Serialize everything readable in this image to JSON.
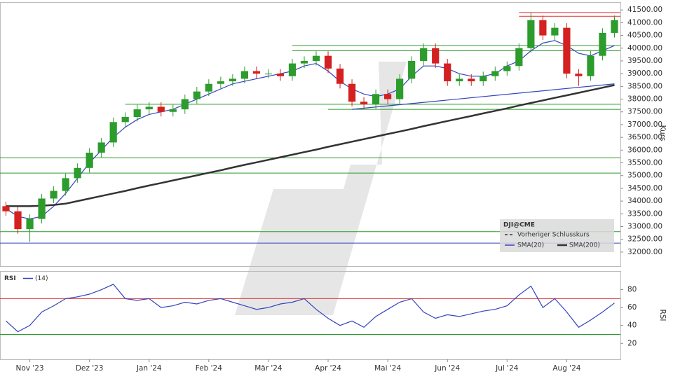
{
  "chart_data": [
    {
      "type": "candlestick",
      "categories": [
        null,
        null,
        "Nov '23",
        null,
        null,
        null,
        null,
        "Dez '23",
        null,
        null,
        null,
        null,
        "Jan '24",
        null,
        null,
        null,
        null,
        "Feb '24",
        null,
        null,
        null,
        null,
        "Mär '24",
        null,
        null,
        null,
        null,
        "Apr '24",
        null,
        null,
        null,
        null,
        "Mai '24",
        null,
        null,
        null,
        null,
        "Jun '24",
        null,
        null,
        null,
        null,
        "Jul '24",
        null,
        null,
        null,
        null,
        "Aug '24",
        null,
        null,
        null,
        null
      ],
      "open": [
        33800,
        33600,
        32900,
        33300,
        34100,
        34400,
        34900,
        35300,
        35900,
        36300,
        37100,
        37300,
        37600,
        37700,
        37500,
        37600,
        38000,
        38300,
        38600,
        38700,
        38800,
        39100,
        39000,
        39000,
        38900,
        39400,
        39500,
        39700,
        39200,
        38600,
        37900,
        37800,
        38200,
        38000,
        38800,
        39500,
        40000,
        39400,
        38700,
        38800,
        38700,
        38900,
        39100,
        39300,
        40000,
        41100,
        40500,
        40800,
        39000,
        38900,
        39700,
        40600
      ],
      "high": [
        33980,
        33780,
        33480,
        34280,
        34580,
        35080,
        35480,
        36080,
        36480,
        37280,
        37480,
        37780,
        37880,
        37880,
        37780,
        38180,
        38480,
        38780,
        38880,
        38980,
        39280,
        39280,
        39180,
        39180,
        39580,
        39680,
        39880,
        39880,
        39380,
        38780,
        38080,
        38380,
        38380,
        38980,
        39680,
        40180,
        40180,
        39580,
        38980,
        38980,
        39080,
        39280,
        39480,
        40180,
        41380,
        41280,
        40980,
        40980,
        39180,
        39880,
        40780,
        41280
      ],
      "low": [
        33420,
        32720,
        32400,
        33120,
        33920,
        34220,
        34720,
        35120,
        35720,
        36120,
        36920,
        37120,
        37420,
        37320,
        37320,
        37420,
        37820,
        38120,
        38420,
        38520,
        38620,
        38820,
        38820,
        38720,
        38720,
        39220,
        39320,
        39020,
        38420,
        37720,
        37620,
        37620,
        37820,
        37820,
        38620,
        39320,
        39220,
        38520,
        38520,
        38520,
        38520,
        38720,
        38920,
        39120,
        39820,
        40320,
        40320,
        38820,
        38520,
        38720,
        39520,
        40420
      ],
      "close": [
        33600,
        32900,
        33300,
        34100,
        34400,
        34900,
        35300,
        35900,
        36300,
        37100,
        37300,
        37600,
        37700,
        37500,
        37600,
        38000,
        38300,
        38600,
        38700,
        38800,
        39100,
        39000,
        39000,
        38900,
        39400,
        39500,
        39700,
        39200,
        38600,
        37900,
        37800,
        38200,
        38000,
        38800,
        39500,
        40000,
        39400,
        38700,
        38800,
        38700,
        38900,
        39100,
        39300,
        40000,
        41100,
        40500,
        40800,
        39000,
        38900,
        39700,
        40600,
        41100
      ],
      "up_color": "#2c9c2c",
      "down_color": "#d42020",
      "series": [
        {
          "name": "SMA(20)",
          "color": "#3344bb",
          "values": [
            33700,
            33400,
            33300,
            33400,
            33800,
            34300,
            34900,
            35500,
            36000,
            36500,
            36900,
            37200,
            37400,
            37500,
            37600,
            37800,
            38000,
            38200,
            38400,
            38600,
            38700,
            38800,
            38900,
            39000,
            39100,
            39300,
            39400,
            39100,
            38700,
            38400,
            38200,
            38100,
            38200,
            38400,
            38900,
            39300,
            39300,
            39200,
            39000,
            38900,
            38900,
            39000,
            39300,
            39500,
            39900,
            40200,
            40300,
            40100,
            39800,
            39700,
            39900,
            40100
          ]
        },
        {
          "name": "SMA(200)",
          "color": "#333333",
          "values": [
            33800,
            33800,
            33800,
            33820,
            33850,
            33900,
            34000,
            34100,
            34200,
            34300,
            34400,
            34510,
            34610,
            34710,
            34810,
            34910,
            35010,
            35110,
            35210,
            35320,
            35420,
            35520,
            35620,
            35720,
            35820,
            35920,
            36020,
            36130,
            36230,
            36330,
            36430,
            36530,
            36630,
            36730,
            36830,
            36940,
            37040,
            37140,
            37240,
            37340,
            37440,
            37540,
            37640,
            37750,
            37850,
            37950,
            38050,
            38150,
            38250,
            38350,
            38450,
            38550
          ]
        }
      ],
      "levels": [
        {
          "value": 41400,
          "color": "#e03030",
          "from": 43
        },
        {
          "value": 41250,
          "color": "#e03030",
          "from": 43
        },
        {
          "value": 40100,
          "color": "#2a9a2a",
          "from": 24
        },
        {
          "value": 39900,
          "color": "#2a9a2a",
          "from": 24
        },
        {
          "value": 37800,
          "color": "#2a9a2a",
          "from": 10
        },
        {
          "value": 37600,
          "color": "#2a9a2a",
          "from": 27
        },
        {
          "value": 35700,
          "color": "#2a9a2a",
          "from": 0
        },
        {
          "value": 35100,
          "color": "#2a9a2a",
          "from": 0
        },
        {
          "value": 32800,
          "color": "#2a9a2a",
          "from": 0
        },
        {
          "value": 32350,
          "color": "#3344bb",
          "from": 0
        }
      ],
      "trendline": {
        "from": 29,
        "to": 51,
        "values": [
          37600,
          38600
        ],
        "color": "#3344bb"
      },
      "legend_title": "DJI@CME",
      "legend_extra": "Vorheriger Schlusskurs",
      "ylabel": "Kurs",
      "ylim": [
        31420,
        41780
      ],
      "yticks": [
        {
          "value": 32000,
          "label": "32000.00"
        },
        {
          "value": 32500,
          "label": "32500.00"
        },
        {
          "value": 33000,
          "label": "33000.00"
        },
        {
          "value": 33500,
          "label": "33500.00"
        },
        {
          "value": 34000,
          "label": "34000.00"
        },
        {
          "value": 34500,
          "label": "34500.00"
        },
        {
          "value": 35000,
          "label": "35000.00"
        },
        {
          "value": 35500,
          "label": "35500.00"
        },
        {
          "value": 36000,
          "label": "36000.00"
        },
        {
          "value": 36500,
          "label": "36500.00"
        },
        {
          "value": 37000,
          "label": "37000.00"
        },
        {
          "value": 37500,
          "label": "37500.00"
        },
        {
          "value": 38000,
          "label": "38000.00"
        },
        {
          "value": 38500,
          "label": "38500.00"
        },
        {
          "value": 39000,
          "label": "39000.00"
        },
        {
          "value": 39500,
          "label": "39500.00"
        },
        {
          "value": 40000,
          "label": "40000.00"
        },
        {
          "value": 40500,
          "label": "40500.00"
        },
        {
          "value": 41000,
          "label": "41000.00"
        },
        {
          "value": 41500,
          "label": "41500.00"
        }
      ]
    },
    {
      "type": "line",
      "title": "RSI",
      "ylabel": "RSI",
      "series": [
        {
          "name": "(14)",
          "color": "#3344bb",
          "values": [
            45,
            33,
            40,
            55,
            62,
            70,
            72,
            75,
            80,
            86,
            70,
            68,
            70,
            60,
            62,
            66,
            64,
            68,
            70,
            66,
            62,
            58,
            60,
            64,
            66,
            70,
            58,
            48,
            40,
            45,
            38,
            50,
            58,
            66,
            70,
            55,
            48,
            52,
            50,
            53,
            56,
            58,
            62,
            74,
            84,
            60,
            70,
            55,
            38,
            46,
            55,
            65
          ]
        }
      ],
      "levels": [
        {
          "value": 70,
          "color": "#e03030"
        },
        {
          "value": 30,
          "color": "#2a9a2a"
        }
      ],
      "ylim": [
        3,
        100
      ],
      "yticks": [
        20,
        40,
        60,
        80
      ]
    }
  ]
}
